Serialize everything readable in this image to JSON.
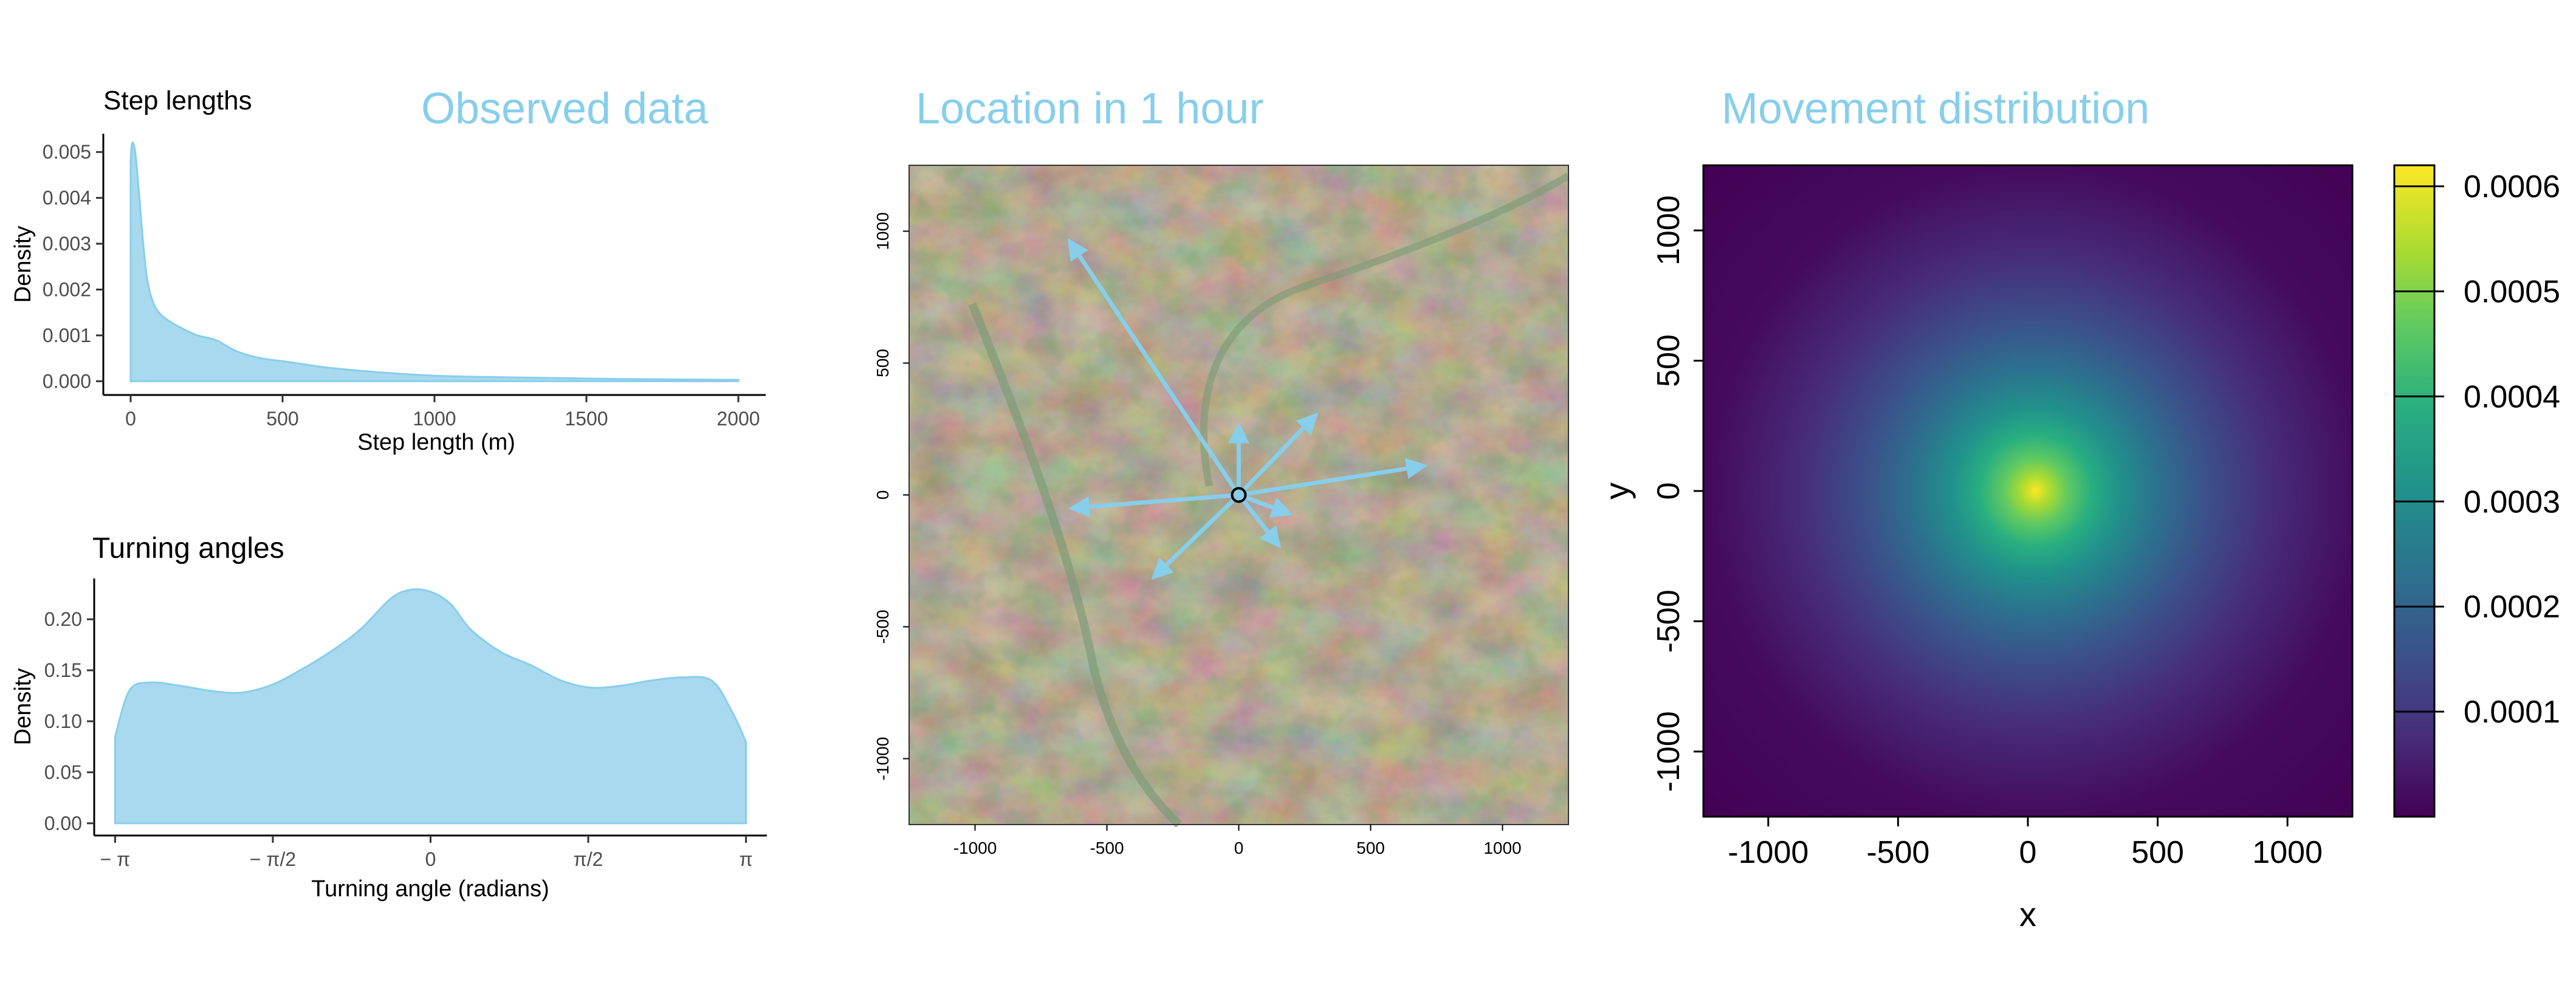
{
  "headings": {
    "observed": "Observed data",
    "location": "Location in 1 hour",
    "movement": "Movement distribution"
  },
  "colors": {
    "accent": "#87ceeb",
    "fill": "#a8d9ee",
    "arrow": "#87ceeb",
    "axis": "#000000",
    "tick_text": "#4d4d4d"
  },
  "chart_data": [
    {
      "id": "step-lengths",
      "type": "area",
      "title": "Step lengths",
      "xlabel": "Step length (m)",
      "ylabel": "Density",
      "xlim": [
        -90,
        2090
      ],
      "ylim": [
        -0.0003,
        0.0054
      ],
      "x_ticks": [
        0,
        500,
        1000,
        1500,
        2000
      ],
      "x_tick_labels": [
        "0",
        "500",
        "1000",
        "1500",
        "2000"
      ],
      "y_ticks": [
        0,
        0.001,
        0.002,
        0.003,
        0.004,
        0.005
      ],
      "y_tick_labels": [
        "0.000",
        "0.001",
        "0.002",
        "0.003",
        "0.004",
        "0.005"
      ],
      "grid": false,
      "x": [
        0,
        5,
        15,
        25,
        40,
        55,
        75,
        100,
        130,
        170,
        220,
        280,
        350,
        430,
        520,
        620,
        720,
        850,
        1000,
        1200,
        1400,
        1600,
        1800,
        2000
      ],
      "y": [
        0.0048,
        0.0052,
        0.005,
        0.0043,
        0.0031,
        0.0022,
        0.0017,
        0.00145,
        0.0013,
        0.00115,
        0.001,
        0.0009,
        0.00065,
        0.0005,
        0.00042,
        0.00032,
        0.00025,
        0.00018,
        0.00012,
        9e-05,
        7e-05,
        5e-05,
        4e-05,
        3e-05
      ]
    },
    {
      "id": "turning-angles",
      "type": "area",
      "title": "Turning angles",
      "xlabel": "Turning angle (radians)",
      "ylabel": "Density",
      "xlim": [
        -3.35,
        3.35
      ],
      "ylim": [
        -0.012,
        0.24
      ],
      "x_ticks": [
        -3.14159,
        -1.5708,
        0,
        1.5708,
        3.14159
      ],
      "x_tick_labels": [
        "− π",
        "− π/2",
        "0",
        "π/2",
        "π"
      ],
      "y_ticks": [
        0,
        0.05,
        0.1,
        0.15,
        0.2
      ],
      "y_tick_labels": [
        "0.00",
        "0.05",
        "0.10",
        "0.15",
        "0.20"
      ],
      "grid": false,
      "x": [
        -3.14159,
        -3.0,
        -2.8,
        -2.5,
        -2.2,
        -1.9,
        -1.6,
        -1.3,
        -1.0,
        -0.7,
        -0.4,
        -0.2,
        0,
        0.2,
        0.4,
        0.7,
        1.0,
        1.3,
        1.6,
        1.9,
        2.2,
        2.5,
        2.8,
        3.0,
        3.14159
      ],
      "y": [
        0.085,
        0.13,
        0.138,
        0.135,
        0.13,
        0.128,
        0.135,
        0.15,
        0.168,
        0.19,
        0.22,
        0.229,
        0.227,
        0.215,
        0.19,
        0.168,
        0.155,
        0.14,
        0.133,
        0.135,
        0.14,
        0.143,
        0.14,
        0.11,
        0.08
      ]
    },
    {
      "id": "location-in-1-hour",
      "type": "scatter",
      "title": "Location in 1 hour",
      "xlim": [
        -1250,
        1250
      ],
      "ylim": [
        -1250,
        1250
      ],
      "x_ticks": [
        -1000,
        -500,
        0,
        500,
        1000
      ],
      "x_tick_labels": [
        "-1000",
        "-500",
        "0",
        "500",
        "1000"
      ],
      "y_ticks": [
        -1000,
        -500,
        0,
        500,
        1000
      ],
      "y_tick_labels": [
        "-1000",
        "-500",
        "0",
        "500",
        "1000"
      ],
      "background": "satellite image",
      "origin": [
        0,
        0
      ],
      "arrows": [
        {
          "x": -640,
          "y": 960
        },
        {
          "x": 0,
          "y": 260
        },
        {
          "x": 290,
          "y": 300
        },
        {
          "x": 700,
          "y": 110
        },
        {
          "x": 190,
          "y": -70
        },
        {
          "x": 150,
          "y": -190
        },
        {
          "x": -630,
          "y": -50
        },
        {
          "x": -320,
          "y": -310
        }
      ]
    },
    {
      "id": "movement-distribution",
      "type": "heatmap",
      "title": "Movement distribution",
      "xlabel": "x",
      "ylabel": "y",
      "xlim": [
        -1250,
        1250
      ],
      "ylim": [
        -1250,
        1250
      ],
      "x_ticks": [
        -1000,
        -500,
        0,
        500,
        1000
      ],
      "x_tick_labels": [
        "-1000",
        "-500",
        "0",
        "500",
        "1000"
      ],
      "y_ticks": [
        -1000,
        -500,
        0,
        500,
        1000
      ],
      "y_tick_labels": [
        "-1000",
        "-500",
        "0",
        "500",
        "1000"
      ],
      "center": [
        30,
        0
      ],
      "peak_density": 0.0006,
      "colorscale": "viridis",
      "colorbar_range": [
        0,
        0.00062
      ],
      "colorbar_ticks": [
        0.0001,
        0.0002,
        0.0003,
        0.0004,
        0.0005,
        0.0006
      ],
      "colorbar_tick_labels": [
        "0.0001",
        "0.0002",
        "0.0003",
        "0.0004",
        "0.0005",
        "0.0006"
      ]
    }
  ]
}
